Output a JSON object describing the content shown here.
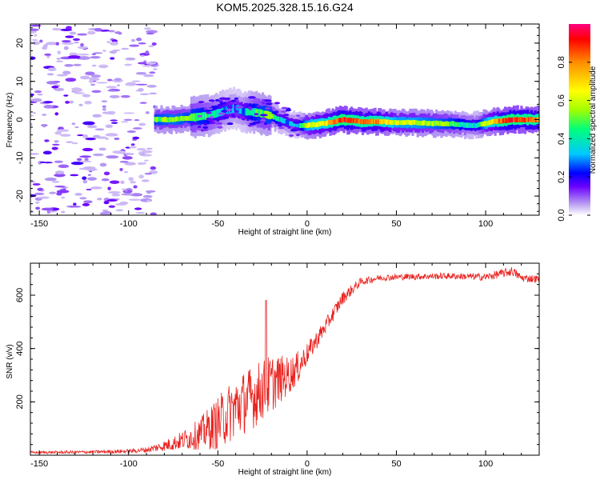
{
  "title": "KOM5.2025.328.15.16.G24",
  "chart_data": [
    {
      "type": "heatmap",
      "name": "spectrogram",
      "xlabel": "Height of straight line (km)",
      "ylabel": "Frequency (Hz)",
      "xlim": [
        -155,
        130
      ],
      "ylim": [
        -25,
        25
      ],
      "xticks": [
        -150,
        -100,
        -50,
        0,
        50,
        100
      ],
      "yticks": [
        -20,
        -10,
        0,
        10,
        20
      ],
      "colorbar": {
        "label": "Normalized spectral amplitude",
        "range": [
          0,
          1
        ],
        "ticks": [
          0.0,
          0.2,
          0.4,
          0.6,
          0.8
        ],
        "colors": [
          "#ffffff",
          "#b79cf2",
          "#6a00ff",
          "#0000ff",
          "#00c8ff",
          "#00ff7a",
          "#a0ff00",
          "#ffff00",
          "#ff8c00",
          "#ff0000",
          "#ff007f"
        ]
      },
      "noise_region_x": [
        -155,
        -85
      ],
      "signal_region_x": [
        -85,
        130
      ],
      "signal_track": {
        "x": [
          -85,
          -75,
          -65,
          -55,
          -45,
          -40,
          -35,
          -30,
          -25,
          -20,
          -15,
          -10,
          -5,
          0,
          10,
          20,
          30,
          40,
          50,
          60,
          70,
          80,
          90,
          95,
          100,
          105,
          110,
          115,
          120,
          125,
          130
        ],
        "freq": [
          0,
          0,
          0.5,
          1.0,
          2.5,
          3.0,
          2.0,
          2.0,
          1.5,
          1.0,
          0,
          -1.0,
          -1.5,
          -1.5,
          -1.0,
          0,
          -0.5,
          -0.5,
          -0.8,
          -0.8,
          -1.0,
          -1.0,
          -1.5,
          -1.5,
          -1.0,
          -0.5,
          -0.3,
          0,
          0,
          0,
          0
        ],
        "amplitude": [
          0.5,
          0.55,
          0.5,
          0.45,
          0.3,
          0.25,
          0.3,
          0.45,
          0.5,
          0.5,
          0.35,
          0.3,
          0.3,
          0.6,
          0.7,
          0.9,
          0.8,
          0.8,
          0.6,
          0.6,
          0.55,
          0.5,
          0.4,
          0.35,
          0.6,
          0.7,
          0.85,
          0.9,
          0.85,
          0.85,
          0.8
        ]
      }
    },
    {
      "type": "line",
      "name": "snr",
      "xlabel": "Height of straight line (km)",
      "ylabel": "SNR (v/v)",
      "xlim": [
        -155,
        130
      ],
      "ylim": [
        0,
        720
      ],
      "xticks": [
        -150,
        -100,
        -50,
        0,
        50,
        100
      ],
      "yticks": [
        200,
        400,
        600
      ],
      "color": "#e8221f",
      "envelope": {
        "x": [
          -155,
          -120,
          -100,
          -90,
          -80,
          -70,
          -60,
          -50,
          -40,
          -30,
          -20,
          -10,
          -5,
          0,
          10,
          20,
          30,
          40,
          50,
          60,
          80,
          100,
          115,
          120,
          130
        ],
        "y": [
          10,
          12,
          15,
          20,
          35,
          55,
          80,
          120,
          180,
          220,
          270,
          300,
          330,
          380,
          480,
          590,
          650,
          665,
          668,
          670,
          672,
          668,
          690,
          665,
          660
        ],
        "noise": [
          5,
          6,
          8,
          10,
          20,
          35,
          60,
          100,
          120,
          120,
          110,
          70,
          60,
          40,
          30,
          25,
          15,
          12,
          12,
          12,
          12,
          14,
          18,
          15,
          15
        ]
      },
      "annotations_peak": {
        "x": -23,
        "y": 580
      }
    }
  ]
}
